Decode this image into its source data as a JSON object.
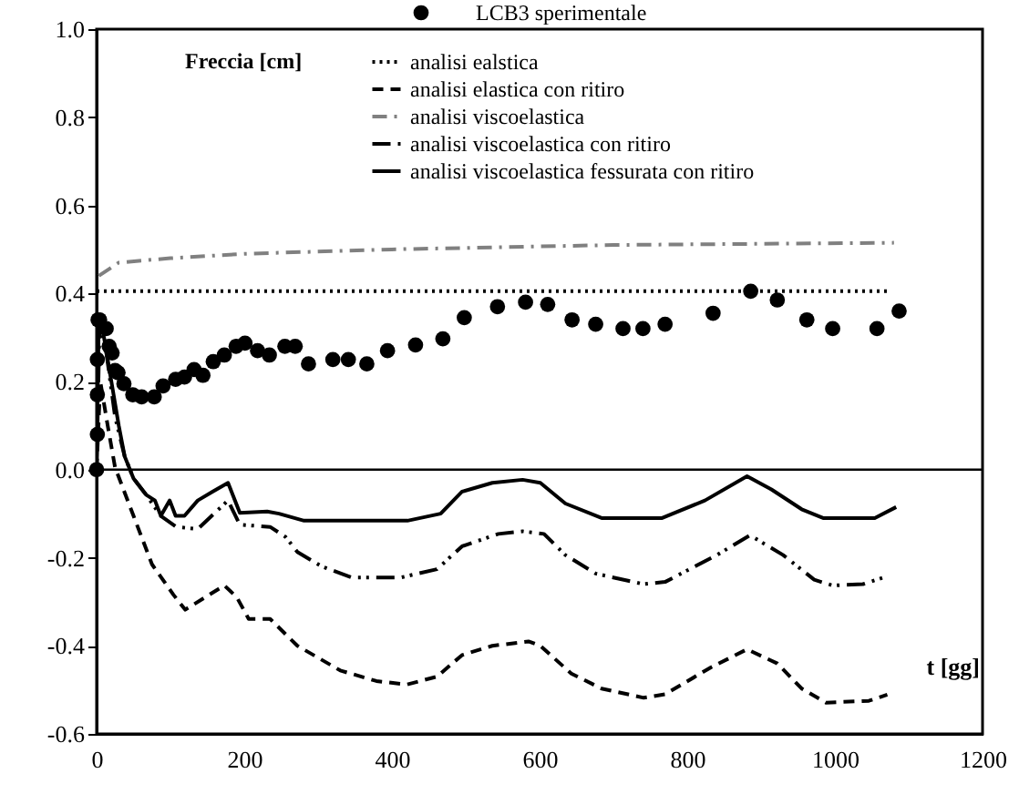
{
  "chart_data": {
    "type": "line",
    "xlabel": "t [gg]",
    "ylabel": "Freccia [cm]",
    "xlim": [
      0,
      1200
    ],
    "xticks": [
      0,
      200,
      400,
      600,
      800,
      {
        "value": 1000,
        "label": "1000"
      },
      {
        "value": 1200,
        "label": "1200"
      }
    ],
    "ylim": [
      -0.6,
      1.0
    ],
    "yticks": [
      {
        "value": -0.6,
        "label": "-0.6"
      },
      {
        "value": -0.4,
        "label": "-0.4"
      },
      {
        "value": -0.2,
        "label": "-0.2"
      },
      {
        "value": 0,
        "label": "0.0"
      },
      {
        "value": 0.2,
        "label": "0.2"
      },
      {
        "value": 0.4,
        "label": "0.4"
      },
      {
        "value": 0.6,
        "label": "0.6"
      },
      {
        "value": 0.8,
        "label": "0.8"
      },
      {
        "value": 1.0,
        "label": "1.0"
      }
    ],
    "grid": false,
    "legend": "top",
    "ref_lines": [
      {
        "axis": "y",
        "value": 0,
        "color": "#000000"
      }
    ],
    "series": [
      {
        "name": "LCB3 sperimentale",
        "type": "scatter",
        "marker": "circle",
        "color": "#000000",
        "x": [
          0,
          1,
          1,
          1,
          2,
          4,
          13,
          17,
          21,
          25,
          29,
          37,
          49,
          61,
          78,
          90,
          107,
          119,
          132,
          144,
          158,
          173,
          189,
          201,
          218,
          234,
          255,
          269,
          287,
          320,
          341,
          366,
          394,
          432,
          469,
          498,
          543,
          581,
          611,
          644,
          676,
          713,
          740,
          770,
          835,
          886,
          922,
          962,
          997,
          1057,
          1087
        ],
        "values": [
          0,
          0.08,
          0.17,
          0.25,
          0.34,
          0.34,
          0.32,
          0.28,
          0.265,
          0.225,
          0.22,
          0.195,
          0.17,
          0.165,
          0.165,
          0.19,
          0.205,
          0.21,
          0.227,
          0.214,
          0.245,
          0.26,
          0.28,
          0.287,
          0.27,
          0.26,
          0.28,
          0.28,
          0.24,
          0.25,
          0.25,
          0.24,
          0.27,
          0.283,
          0.297,
          0.345,
          0.37,
          0.38,
          0.375,
          0.34,
          0.33,
          0.32,
          0.32,
          0.33,
          0.355,
          0.405,
          0.385,
          0.34,
          0.32,
          0.32,
          0.36
        ]
      },
      {
        "name": "analisi ealstica",
        "line_style": "dotted",
        "color": "#000000",
        "x": [
          0,
          1075
        ],
        "values": [
          0.405,
          0.405
        ]
      },
      {
        "name": "analisi elastica con ritiro",
        "line_style": "dashed",
        "color": "#000000",
        "x": [
          0,
          5,
          15,
          25,
          50,
          75,
          104,
          120,
          173,
          190,
          206,
          235,
          272,
          330,
          379,
          420,
          461,
          495,
          536,
          585,
          601,
          643,
          684,
          741,
          770,
          832,
          881,
          922,
          955,
          988,
          1046,
          1071
        ],
        "values": [
          0,
          0.2,
          0.1,
          0.005,
          -0.105,
          -0.215,
          -0.284,
          -0.318,
          -0.263,
          -0.29,
          -0.339,
          -0.339,
          -0.4,
          -0.456,
          -0.48,
          -0.488,
          -0.47,
          -0.421,
          -0.4,
          -0.39,
          -0.4,
          -0.463,
          -0.497,
          -0.518,
          -0.51,
          -0.449,
          -0.408,
          -0.44,
          -0.497,
          -0.529,
          -0.525,
          -0.511
        ]
      },
      {
        "name": "analisi viscoelastica",
        "line_style": "dashdot",
        "color": "#808080",
        "x": [
          3,
          30,
          100,
          200,
          400,
          700,
          1080
        ],
        "values": [
          0.44,
          0.47,
          0.48,
          0.49,
          0.5,
          0.51,
          0.515
        ]
      },
      {
        "name": "analisi viscoelastica con ritiro",
        "line_style": "dashdotdot",
        "color": "#000000",
        "x": [
          0,
          4,
          12,
          25,
          38,
          50,
          67,
          87,
          108,
          137,
          178,
          194,
          235,
          256,
          272,
          305,
          346,
          412,
          461,
          495,
          544,
          577,
          606,
          635,
          676,
          741,
          770,
          840,
          885,
          930,
          972,
          997,
          1038,
          1071
        ],
        "values": [
          0,
          0.33,
          0.28,
          0.12,
          0.03,
          -0.02,
          -0.057,
          -0.105,
          -0.13,
          -0.135,
          -0.07,
          -0.125,
          -0.13,
          -0.153,
          -0.187,
          -0.22,
          -0.245,
          -0.245,
          -0.226,
          -0.174,
          -0.146,
          -0.14,
          -0.146,
          -0.194,
          -0.236,
          -0.26,
          -0.255,
          -0.194,
          -0.149,
          -0.194,
          -0.25,
          -0.263,
          -0.26,
          -0.242
        ]
      },
      {
        "name": "analisi viscoelastica fessurata con ritiro",
        "line_style": "solid",
        "color": "#000000",
        "x": [
          0,
          3,
          10,
          20,
          30,
          38,
          50,
          67,
          79,
          87,
          99,
          107,
          119,
          137,
          157,
          178,
          194,
          231,
          247,
          281,
          355,
          421,
          466,
          495,
          536,
          577,
          601,
          635,
          684,
          766,
          824,
          881,
          914,
          955,
          984,
          1054,
          1083
        ],
        "values": [
          0,
          0.35,
          0.3,
          0.2,
          0.1,
          0.03,
          -0.02,
          -0.057,
          -0.07,
          -0.105,
          -0.07,
          -0.105,
          -0.105,
          -0.07,
          -0.05,
          -0.03,
          -0.098,
          -0.095,
          -0.1,
          -0.116,
          -0.116,
          -0.116,
          -0.1,
          -0.05,
          -0.03,
          -0.023,
          -0.03,
          -0.077,
          -0.11,
          -0.11,
          -0.07,
          -0.015,
          -0.045,
          -0.09,
          -0.11,
          -0.11,
          -0.085
        ]
      }
    ]
  }
}
